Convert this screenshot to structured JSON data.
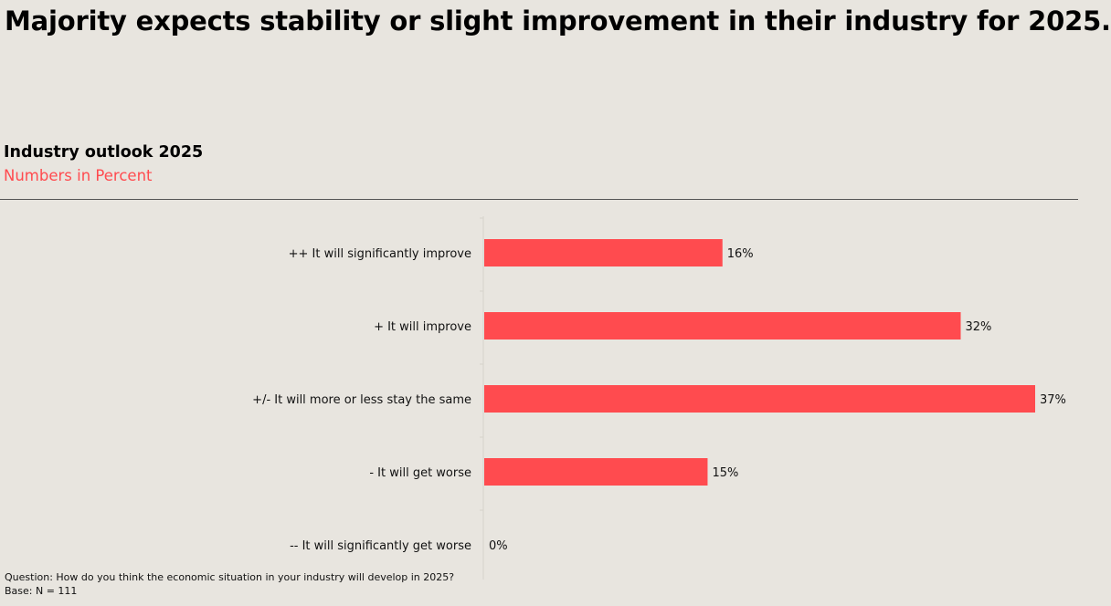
{
  "headline": "Majority expects stability or slight improvement in their industry for 2025.",
  "chart_data": {
    "type": "bar",
    "orientation": "horizontal",
    "title": "Industry outlook 2025",
    "subtitle": "Numbers in Percent",
    "categories": [
      "++ It will significantly improve",
      "+ It will improve",
      "+/- It will more or less stay the same",
      "- It will get worse",
      "-- It will significantly get worse"
    ],
    "values": [
      16,
      32,
      37,
      15,
      0
    ],
    "value_labels": [
      "16%",
      "32%",
      "37%",
      "15%",
      "0%"
    ],
    "xlim": [
      0,
      37
    ],
    "grid": false,
    "bar_color": "#ff4b4f"
  },
  "footnotes": {
    "question": "Question: How do you think the economic situation in your industry will develop in 2025?",
    "base": "Base: N = 111"
  },
  "colors": {
    "background": "#e8e5df",
    "accent": "#ff4b4f"
  }
}
